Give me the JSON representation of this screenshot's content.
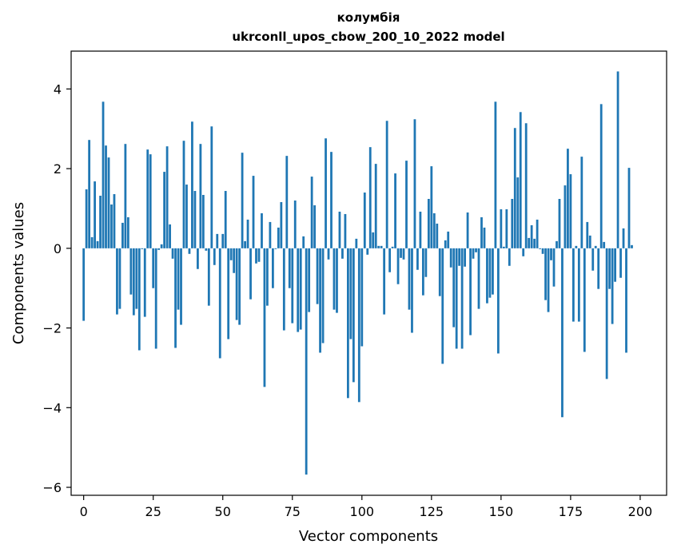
{
  "chart_data": {
    "type": "bar",
    "title": "колумбія",
    "subtitle": "ukrconll_upos_cbow_200_10_2022 model",
    "xlabel": "Vector components",
    "ylabel": "Components values",
    "xlim": [
      -4.5,
      209.5
    ],
    "ylim": [
      -6.2,
      4.95
    ],
    "xticks": [
      0,
      25,
      50,
      75,
      100,
      125,
      150,
      175,
      200
    ],
    "yticks": [
      -6,
      -4,
      -2,
      0,
      2,
      4
    ],
    "xtick_labels": [
      "0",
      "25",
      "50",
      "75",
      "100",
      "125",
      "150",
      "175",
      "200"
    ],
    "ytick_labels": [
      "−6",
      "−4",
      "−2",
      "0",
      "2",
      "4"
    ],
    "color": "#1f77b4",
    "values": [
      -1.82,
      1.48,
      2.72,
      0.28,
      1.68,
      0.18,
      1.32,
      3.68,
      2.58,
      2.28,
      1.1,
      1.36,
      -1.66,
      -1.52,
      0.64,
      2.62,
      0.78,
      -1.16,
      -1.68,
      -1.52,
      -2.56,
      -0.02,
      -1.72,
      2.48,
      2.36,
      -1.0,
      -2.52,
      -0.04,
      0.1,
      1.92,
      2.56,
      0.6,
      -0.26,
      -2.5,
      -1.54,
      -1.92,
      2.7,
      1.6,
      -0.14,
      3.18,
      1.44,
      -0.52,
      2.62,
      1.34,
      -0.06,
      -1.44,
      3.06,
      -0.42,
      0.36,
      -2.76,
      0.36,
      1.44,
      -2.28,
      -0.3,
      -0.62,
      -1.8,
      -1.92,
      2.4,
      0.18,
      0.72,
      -1.28,
      1.82,
      -0.38,
      -0.34,
      0.88,
      -3.48,
      -1.44,
      0.66,
      -1.0,
      -0.02,
      0.52,
      1.16,
      -2.06,
      2.32,
      -1.0,
      -1.88,
      1.2,
      -2.1,
      -2.04,
      0.3,
      -5.68,
      -1.6,
      1.8,
      1.08,
      -1.4,
      -2.62,
      -2.38,
      2.76,
      -0.28,
      2.42,
      -1.54,
      -1.62,
      0.92,
      -0.26,
      0.86,
      -3.76,
      -2.28,
      -3.36,
      0.24,
      -3.86,
      -2.46,
      1.4,
      -0.16,
      2.54,
      0.4,
      2.12,
      0.06,
      0.06,
      -1.66,
      3.2,
      -0.6,
      0.04,
      1.88,
      -0.9,
      -0.24,
      -0.28,
      2.2,
      -1.54,
      -2.12,
      3.24,
      -0.54,
      0.92,
      -1.18,
      -0.72,
      1.24,
      2.06,
      0.88,
      0.62,
      -1.2,
      -2.9,
      0.2,
      0.42,
      -0.48,
      -1.98,
      -2.52,
      -0.44,
      -2.52,
      -0.46,
      0.9,
      -2.18,
      -0.26,
      -0.1,
      -1.52,
      0.78,
      0.52,
      -1.38,
      -1.24,
      -1.16,
      3.68,
      -2.64,
      0.98,
      0.04,
      0.98,
      -0.44,
      1.24,
      3.02,
      1.78,
      3.42,
      -0.2,
      3.14,
      0.26,
      0.58,
      0.24,
      0.72,
      -0.02,
      -0.14,
      -1.3,
      -1.6,
      -0.3,
      -0.96,
      0.18,
      1.24,
      -4.24,
      1.58,
      2.5,
      1.86,
      -1.84,
      0.06,
      -1.84,
      2.3,
      -2.6,
      0.66,
      0.32,
      -0.56,
      0.06,
      -1.02,
      3.62,
      0.16,
      -3.28,
      -1.02,
      -1.9,
      -0.84,
      4.44,
      -0.74,
      0.5,
      -2.62,
      2.02,
      0.08
    ]
  }
}
